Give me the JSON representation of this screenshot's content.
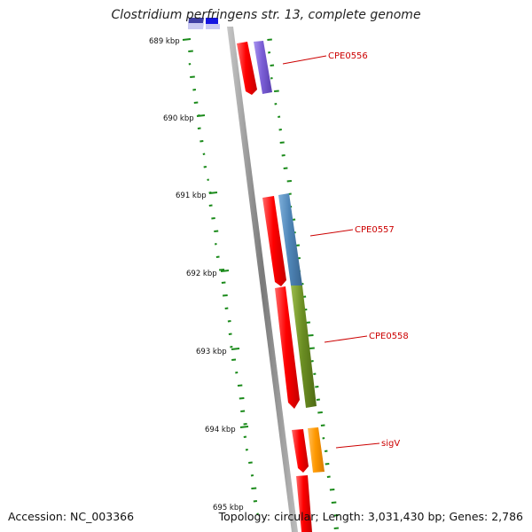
{
  "title": "Clostridium perfringens str. 13, complete genome",
  "footer": {
    "accession": "Accession: NC_003366",
    "summary": "Topology: circular; Length: 3,031,430 bp; Genes: 2,786"
  },
  "ticks": [
    "689 kbp",
    "690 kbp",
    "691 kbp",
    "692 kbp",
    "693 kbp",
    "694 kbp",
    "695 kbp"
  ],
  "gene_labels": [
    "CPE0556",
    "CPE0557",
    "CPE0558",
    "sigV"
  ],
  "colors": {
    "backbone": "#8a8a8a",
    "gc_dash": "#1a8a1a",
    "gene_red": "#ff0000",
    "label_red": "#cc0000",
    "purple": "#7b5fd6",
    "steel_blue": "#4f86b8",
    "olive": "#6b8e23",
    "orange": "#ff9900",
    "navy": "#2a2a9a",
    "blue": "#1515e0"
  }
}
